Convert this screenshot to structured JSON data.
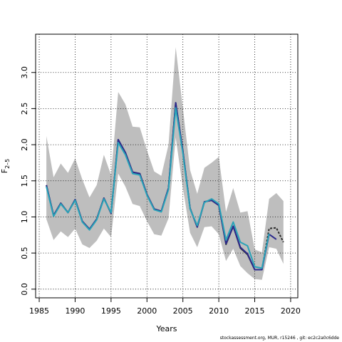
{
  "chart_data": {
    "type": "line",
    "xlabel": "Years",
    "ylabel": "F",
    "ylabel_sub": "2–5",
    "xlim": [
      1984.5,
      2021
    ],
    "ylim": [
      -0.12,
      3.53
    ],
    "xticks": [
      1985,
      1990,
      1995,
      2000,
      2005,
      2010,
      2015,
      2020
    ],
    "yticks": [
      0.0,
      0.5,
      1.0,
      1.5,
      2.0,
      2.5,
      3.0
    ],
    "ytick_labels": [
      "0.0",
      "0.5",
      "1.0",
      "1.5",
      "2.0",
      "2.5",
      "3.0"
    ],
    "grid": true,
    "colors": {
      "band": "#bebebe",
      "black_series": "#2b2b2b",
      "navy_series": "#2c2a8c",
      "cyan_series": "#29a3b8"
    },
    "band": {
      "x": [
        1986,
        1987,
        1988,
        1989,
        1990,
        1991,
        1992,
        1993,
        1994,
        1995,
        1996,
        1997,
        1998,
        1999,
        2000,
        2001,
        2002,
        2003,
        2004,
        2005,
        2006,
        2007,
        2008,
        2009,
        2010,
        2011,
        2012,
        2013,
        2014,
        2015,
        2016,
        2017,
        2018,
        2019
      ],
      "upper": [
        2.12,
        1.55,
        1.74,
        1.61,
        1.81,
        1.52,
        1.27,
        1.44,
        1.86,
        1.58,
        2.73,
        2.56,
        2.25,
        2.24,
        1.92,
        1.63,
        1.57,
        2.0,
        3.35,
        2.5,
        1.65,
        1.32,
        1.68,
        1.75,
        1.83,
        1.07,
        1.4,
        1.06,
        1.08,
        0.55,
        0.51,
        1.25,
        1.33,
        1.22
      ],
      "lower": [
        0.97,
        0.68,
        0.8,
        0.72,
        0.84,
        0.62,
        0.57,
        0.67,
        0.84,
        0.72,
        1.6,
        1.42,
        1.18,
        1.15,
        0.94,
        0.76,
        0.74,
        0.98,
        2.1,
        1.4,
        0.78,
        0.58,
        0.86,
        0.87,
        0.76,
        0.39,
        0.56,
        0.32,
        0.22,
        0.14,
        0.13,
        0.58,
        0.56,
        0.35
      ]
    },
    "series": [
      {
        "color_key": "black_series",
        "x": [
          1986,
          1987,
          1988,
          1989,
          1990,
          1991,
          1992,
          1993,
          1994,
          1995,
          1996,
          1997,
          1998,
          1999,
          2000,
          2001,
          2002,
          2003,
          2004,
          2005,
          2006,
          2007,
          2008,
          2009,
          2010,
          2011,
          2012,
          2013,
          2014,
          2015,
          2016,
          2017,
          2018,
          2019
        ],
        "values": [
          1.44,
          1.02,
          1.19,
          1.06,
          1.24,
          0.94,
          0.83,
          0.97,
          1.26,
          1.05,
          2.07,
          1.89,
          1.62,
          1.6,
          1.31,
          1.11,
          1.08,
          1.4,
          2.58,
          1.91,
          1.12,
          0.86,
          1.21,
          1.23,
          1.16,
          0.62,
          0.87,
          0.57,
          0.48,
          0.27,
          0.27,
          0.84,
          0.85,
          0.65
        ],
        "dashed_from": 2016
      },
      {
        "color_key": "navy_series",
        "x": [
          1986,
          1987,
          1988,
          1989,
          1990,
          1991,
          1992,
          1993,
          1994,
          1995,
          1996,
          1997,
          1998,
          1999,
          2000,
          2001,
          2002,
          2003,
          2004,
          2005,
          2006,
          2007,
          2008,
          2009,
          2010,
          2011,
          2012,
          2013,
          2014,
          2015,
          2016,
          2017,
          2018
        ],
        "values": [
          1.44,
          1.02,
          1.19,
          1.06,
          1.24,
          0.94,
          0.83,
          0.97,
          1.26,
          1.05,
          2.07,
          1.89,
          1.62,
          1.6,
          1.31,
          1.11,
          1.08,
          1.4,
          2.58,
          1.91,
          1.12,
          0.86,
          1.21,
          1.23,
          1.16,
          0.63,
          0.87,
          0.58,
          0.49,
          0.27,
          0.27,
          0.76,
          0.69
        ]
      },
      {
        "color_key": "cyan_series",
        "x": [
          1986,
          1987,
          1988,
          1989,
          1990,
          1991,
          1992,
          1993,
          1994,
          1995,
          1996,
          1997,
          1998,
          1999,
          2000,
          2001,
          2002,
          2003,
          2004,
          2005,
          2006,
          2007,
          2008,
          2009,
          2010,
          2011,
          2012,
          2013,
          2014,
          2015,
          2016,
          2017
        ],
        "values": [
          1.42,
          1.01,
          1.18,
          1.06,
          1.23,
          0.93,
          0.82,
          0.96,
          1.25,
          1.06,
          2.03,
          1.86,
          1.6,
          1.58,
          1.3,
          1.1,
          1.07,
          1.38,
          2.51,
          1.88,
          1.11,
          0.88,
          1.2,
          1.25,
          1.18,
          0.68,
          0.93,
          0.65,
          0.6,
          0.31,
          0.29,
          0.77
        ]
      }
    ]
  },
  "footnote": "stockassessment.org, MUR, r15246 , git: ec2c2a0c6dde"
}
